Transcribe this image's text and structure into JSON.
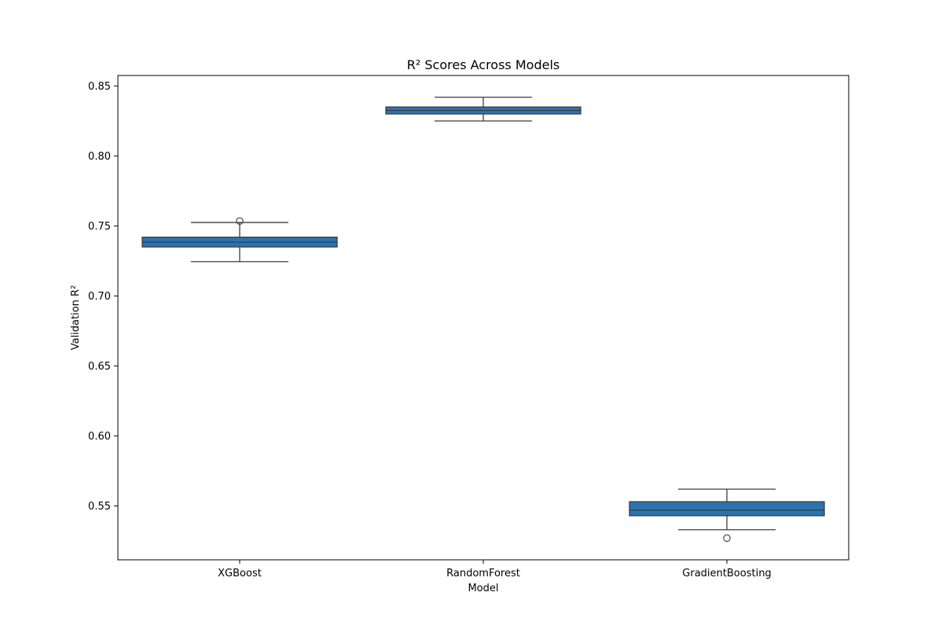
{
  "chart_data": {
    "type": "box",
    "title": "R² Scores Across Models",
    "xlabel": "Model",
    "ylabel": "Validation R²",
    "ylim": [
      0.5115,
      0.8575
    ],
    "yticks": [
      "0.55",
      "0.60",
      "0.65",
      "0.70",
      "0.75",
      "0.80",
      "0.85"
    ],
    "grid": false,
    "categories": [
      "XGBoost",
      "RandomForest",
      "GradientBoosting"
    ],
    "boxes": [
      {
        "category": "XGBoost",
        "whisker_low": 0.7245,
        "q1": 0.735,
        "median": 0.7385,
        "q3": 0.742,
        "whisker_high": 0.7525,
        "outliers": [
          0.7535
        ]
      },
      {
        "category": "RandomForest",
        "whisker_low": 0.825,
        "q1": 0.83,
        "median": 0.8325,
        "q3": 0.835,
        "whisker_high": 0.842,
        "outliers": []
      },
      {
        "category": "GradientBoosting",
        "whisker_low": 0.533,
        "q1": 0.543,
        "median": 0.547,
        "q3": 0.553,
        "whisker_high": 0.562,
        "outliers": [
          0.527
        ]
      }
    ],
    "colors": {
      "box_fill": "#2a73b2",
      "line": "#3d3d3d",
      "axis": "#000000"
    }
  }
}
